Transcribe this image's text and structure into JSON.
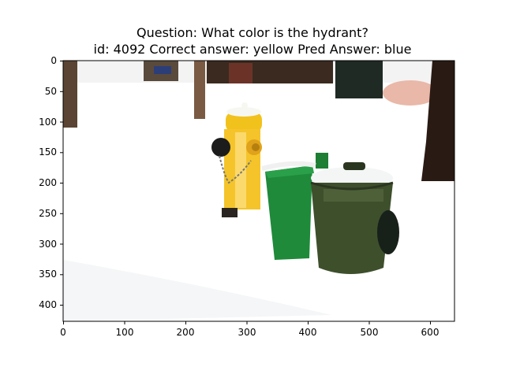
{
  "figure": {
    "title_line1": "Question: What color is the hydrant?",
    "title_line2": "id: 4092 Correct answer: yellow Pred Answer: blue"
  },
  "axes": {
    "x_ticks": [
      "0",
      "100",
      "200",
      "300",
      "400",
      "500",
      "600"
    ],
    "y_ticks": [
      "0",
      "50",
      "100",
      "150",
      "200",
      "250",
      "300",
      "350",
      "400"
    ],
    "x_range": [
      0,
      640
    ],
    "y_range": [
      0,
      427
    ]
  },
  "image": {
    "objects": [
      "yellow-fire-hydrant",
      "green-trash-bin",
      "dark-green-trash-bin",
      "snow",
      "trees"
    ],
    "colors": {
      "hydrant": "#f2c21c",
      "green_bin": "#1e8a3a",
      "dark_bin": "#3e4f2c",
      "snow": "#ffffff"
    }
  }
}
